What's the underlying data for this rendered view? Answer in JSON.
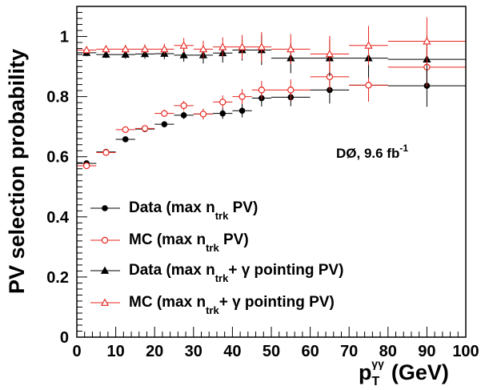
{
  "chart_data": {
    "type": "scatter",
    "xlabel": "p",
    "xlabel_sup": "γγ",
    "xlabel_sub": "T",
    "xlabel_unit": "(GeV)",
    "ylabel": "PV selection probability",
    "xlim": [
      0,
      100
    ],
    "ylim": [
      0,
      1.1
    ],
    "x_ticks": [
      "0",
      "10",
      "20",
      "30",
      "40",
      "50",
      "60",
      "70",
      "80",
      "90",
      "100"
    ],
    "y_ticks": [
      "0",
      "0.2",
      "0.4",
      "0.6",
      "0.8",
      "1"
    ],
    "grid": false,
    "legend_position": "bottom-left",
    "annotation": {
      "text": "DØ, 9.6 fb",
      "sup": "-1"
    },
    "bins": [
      [
        0,
        5
      ],
      [
        5,
        10
      ],
      [
        10,
        15
      ],
      [
        15,
        20
      ],
      [
        20,
        25
      ],
      [
        25,
        30
      ],
      [
        30,
        35
      ],
      [
        35,
        40
      ],
      [
        40,
        45
      ],
      [
        45,
        50
      ],
      [
        50,
        60
      ],
      [
        60,
        70
      ],
      [
        70,
        80
      ],
      [
        80,
        100
      ]
    ],
    "x": [
      2.5,
      7.5,
      12.5,
      17.5,
      22.5,
      27.5,
      32.5,
      37.5,
      42.5,
      47.5,
      55,
      65,
      75,
      90
    ],
    "series": [
      {
        "name": "Data (max n",
        "name_sub": "trk",
        "name_tail": " PV)",
        "marker": "filled-circle",
        "color": "#000000",
        "values": [
          0.578,
          0.616,
          0.658,
          0.692,
          0.708,
          0.738,
          0.742,
          0.744,
          0.753,
          0.795,
          0.798,
          0.822,
          0.838,
          0.836
        ],
        "errors": [
          0.006,
          0.005,
          0.006,
          0.008,
          0.01,
          0.012,
          0.015,
          0.018,
          0.022,
          0.028,
          0.03,
          0.045,
          0.055,
          0.07
        ]
      },
      {
        "name": "MC (max n",
        "name_sub": "trk",
        "name_tail": " PV)",
        "marker": "open-circle",
        "color": "#e8261f",
        "values": [
          0.57,
          0.614,
          0.69,
          0.694,
          0.744,
          0.77,
          0.742,
          0.782,
          0.8,
          0.822,
          0.822,
          0.866,
          0.838,
          0.898
        ],
        "errors": [
          0.005,
          0.005,
          0.008,
          0.009,
          0.012,
          0.016,
          0.018,
          0.022,
          0.025,
          0.03,
          0.035,
          0.045,
          0.055,
          0.065
        ]
      },
      {
        "name": "Data (max n",
        "name_sub": "trk",
        "name_tail": "+ γ pointing PV)",
        "marker": "filled-triangle",
        "color": "#000000",
        "values": [
          0.946,
          0.94,
          0.94,
          0.942,
          0.943,
          0.938,
          0.938,
          0.945,
          0.955,
          0.955,
          0.928,
          0.928,
          0.928,
          0.924
        ],
        "errors": [
          0.012,
          0.012,
          0.014,
          0.016,
          0.018,
          0.022,
          0.028,
          0.032,
          0.035,
          0.05,
          0.05,
          0.06,
          0.065,
          0.08
        ]
      },
      {
        "name": "MC (max n",
        "name_sub": "trk",
        "name_tail": "+ γ pointing PV)",
        "marker": "open-triangle",
        "color": "#e8261f",
        "values": [
          0.955,
          0.958,
          0.958,
          0.958,
          0.958,
          0.97,
          0.958,
          0.965,
          0.965,
          0.965,
          0.958,
          0.942,
          0.97,
          0.984
        ],
        "errors": [
          0.012,
          0.012,
          0.014,
          0.016,
          0.018,
          0.025,
          0.028,
          0.032,
          0.04,
          0.05,
          0.05,
          0.06,
          0.065,
          0.08
        ]
      }
    ]
  }
}
